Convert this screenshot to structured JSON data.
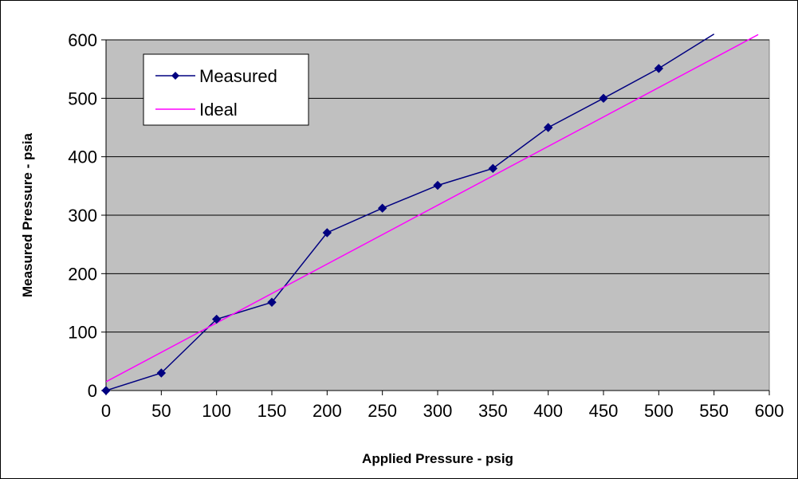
{
  "chart_data": {
    "type": "line",
    "xlabel": "Applied Pressure - psig",
    "ylabel": "Measured Pressure - psia",
    "xlim": [
      0,
      600
    ],
    "ylim": [
      0,
      600
    ],
    "x_ticks": [
      0,
      50,
      100,
      150,
      200,
      250,
      300,
      350,
      400,
      450,
      500,
      550,
      600
    ],
    "y_ticks": [
      0,
      100,
      200,
      300,
      400,
      500,
      600
    ],
    "grid": "horizontal",
    "plot_background": "#C0C0C0",
    "legend_position": "top-left",
    "series": [
      {
        "name": "Measured",
        "color": "#000080",
        "marker": "diamond",
        "x": [
          0,
          50,
          100,
          150,
          200,
          250,
          300,
          350,
          400,
          450,
          500,
          550
        ],
        "y": [
          0,
          30,
          122,
          151,
          270,
          312,
          351,
          380,
          450,
          500,
          551,
          610
        ]
      },
      {
        "name": "Ideal",
        "color": "#FF00FF",
        "marker": "none",
        "x": [
          0,
          590
        ],
        "y": [
          15,
          609
        ]
      }
    ]
  }
}
